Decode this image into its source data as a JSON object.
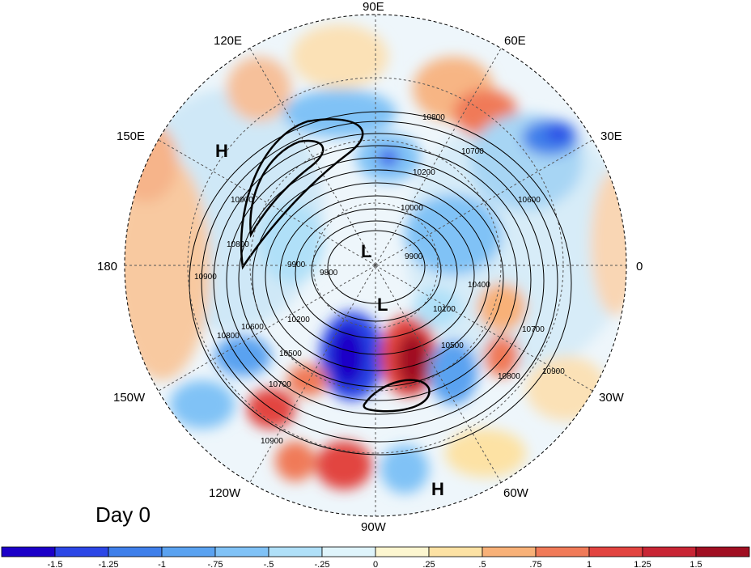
{
  "title": "Day 0",
  "longitude_labels": [
    "90E",
    "60E",
    "30E",
    "0",
    "30W",
    "60W",
    "90W",
    "120W",
    "150W",
    "180",
    "150E",
    "120E"
  ],
  "pressure_centers": [
    {
      "type": "H",
      "region": "North Pacific / Siberia"
    },
    {
      "type": "L",
      "region": "Pole"
    },
    {
      "type": "L",
      "region": "Hudson Bay"
    },
    {
      "type": "H",
      "region": "Gulf of Mexico"
    }
  ],
  "contour_labels": [
    "10800",
    "10700",
    "10200",
    "10000",
    "10600",
    "9900",
    "9800",
    "9900",
    "10200",
    "10500",
    "10400",
    "10100",
    "10500",
    "10700",
    "10800",
    "10900",
    "10900",
    "10800",
    "10600",
    "10700",
    "10900",
    "10900",
    "10800"
  ],
  "colorbar": {
    "labels": [
      "-1.5",
      "-1.25",
      "-1",
      "-.75",
      "-.5",
      "-.25",
      "0",
      ".25",
      ".5",
      ".75",
      "1",
      "1.25",
      "1.5"
    ],
    "colors": [
      "#1c00c8",
      "#2c47e6",
      "#3f7fea",
      "#5aa2f0",
      "#80c2f6",
      "#b0e0f8",
      "#dff4fb",
      "#fdf6d0",
      "#fde2a4",
      "#f8b178",
      "#f07a58",
      "#e24440",
      "#c82534",
      "#a00f22"
    ]
  },
  "colors": {
    "ocean_neutral": "#f3efe2",
    "frame": "#000000"
  }
}
